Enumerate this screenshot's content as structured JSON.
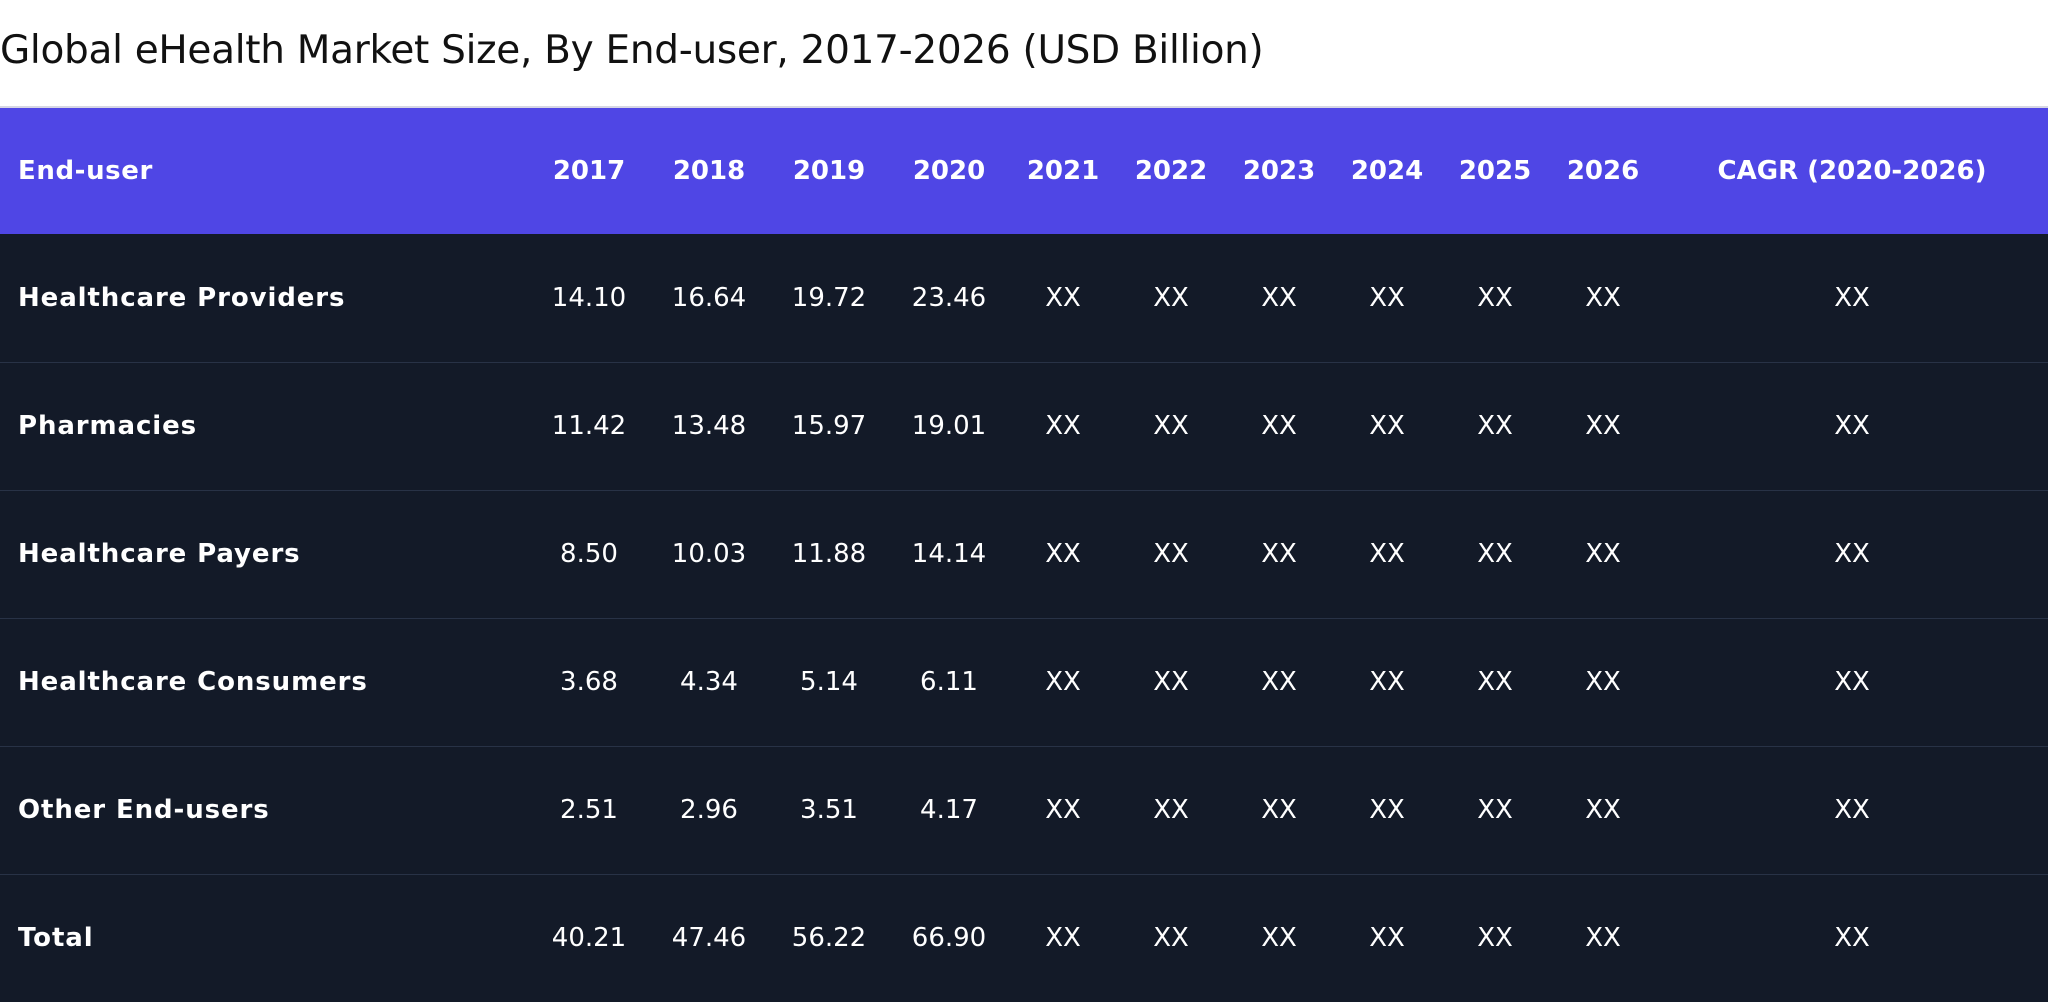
{
  "chart_data": {
    "type": "table",
    "title": "Global eHealth Market Size, By End-user, 2017-2026 (USD Billion)",
    "columns": [
      "End-user",
      "2017",
      "2018",
      "2019",
      "2020",
      "2021",
      "2022",
      "2023",
      "2024",
      "2025",
      "2026",
      "CAGR (2020-2026)"
    ],
    "rows": [
      [
        "Healthcare Providers",
        "14.10",
        "16.64",
        "19.72",
        "23.46",
        "XX",
        "XX",
        "XX",
        "XX",
        "XX",
        "XX",
        "XX"
      ],
      [
        "Pharmacies",
        "11.42",
        "13.48",
        "15.97",
        "19.01",
        "XX",
        "XX",
        "XX",
        "XX",
        "XX",
        "XX",
        "XX"
      ],
      [
        "Healthcare Payers",
        "8.50",
        "10.03",
        "11.88",
        "14.14",
        "XX",
        "XX",
        "XX",
        "XX",
        "XX",
        "XX",
        "XX"
      ],
      [
        "Healthcare Consumers",
        "3.68",
        "4.34",
        "5.14",
        "6.11",
        "XX",
        "XX",
        "XX",
        "XX",
        "XX",
        "XX",
        "XX"
      ],
      [
        "Other End-users",
        "2.51",
        "2.96",
        "3.51",
        "4.17",
        "XX",
        "XX",
        "XX",
        "XX",
        "XX",
        "XX",
        "XX"
      ],
      [
        "Total",
        "40.21",
        "47.46",
        "56.22",
        "66.90",
        "XX",
        "XX",
        "XX",
        "XX",
        "XX",
        "XX",
        "XX"
      ]
    ],
    "colors": {
      "header_bg": "#4f46e5",
      "body_bg": "#131a28",
      "row_divider": "#283246",
      "text_on_dark": "#ffffff",
      "title_text": "#111111"
    }
  }
}
